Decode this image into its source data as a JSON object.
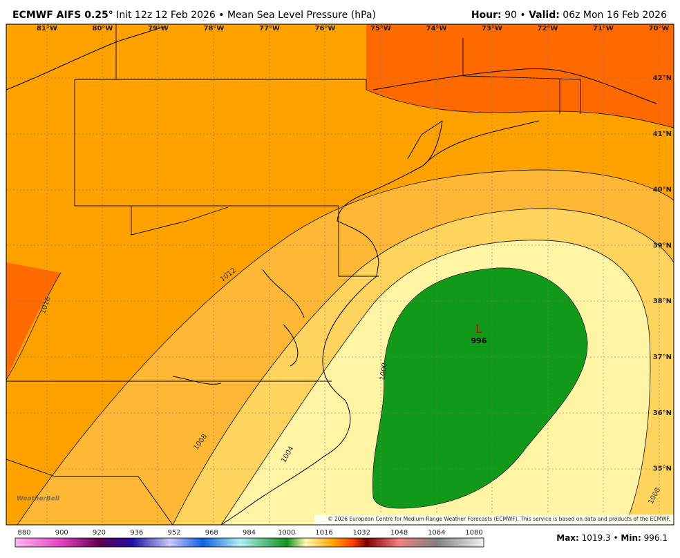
{
  "header": {
    "model": "ECMWF AIFS 0.25°",
    "init": "Init 12z 12 Feb 2026",
    "separator": "•",
    "field": "Mean Sea Level Pressure (hPa)",
    "hour_label": "Hour:",
    "hour": "90",
    "valid_label": "Valid:",
    "valid": "06z Mon 16 Feb 2026"
  },
  "map": {
    "lon_labels": [
      "81°W",
      "80°W",
      "79°W",
      "78°W",
      "77°W",
      "76°W",
      "75°W",
      "74°W",
      "73°W",
      "72°W",
      "71°W",
      "70°W"
    ],
    "lat_labels": [
      "42°N",
      "41°N",
      "40°N",
      "39°N",
      "38°N",
      "37°N",
      "36°N",
      "35°N"
    ],
    "contour_labels": [
      "1016",
      "1012",
      "1008",
      "1004",
      "1000",
      "1008"
    ],
    "low": {
      "symbol": "L",
      "value": "996"
    },
    "credit": "WeatherBell",
    "copyright": "© 2026 European Centre for Medium-Range Weather Forecasts (ECMWF). This service is based on data and products of the ECMWF."
  },
  "colorbar": {
    "ticks": [
      "880",
      "900",
      "920",
      "936",
      "952",
      "968",
      "984",
      "1000",
      "1016",
      "1032",
      "1048",
      "1064",
      "1080"
    ]
  },
  "footer": {
    "max_label": "Max:",
    "max": "1019.3",
    "min_label": "Min:",
    "min": "996.1"
  }
}
